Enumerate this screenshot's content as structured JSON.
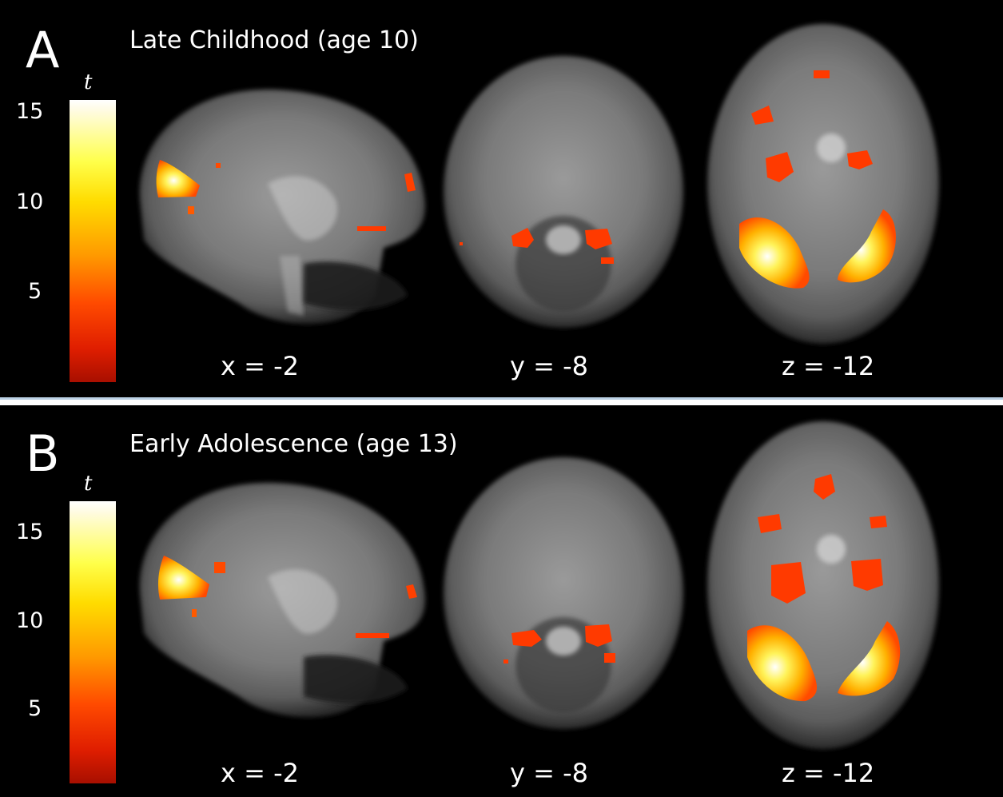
{
  "colormap": {
    "symbol": "t",
    "ticks": [
      "15",
      "10",
      "5"
    ],
    "colors": [
      "#ffffff",
      "#ffff4a",
      "#ff9a00",
      "#e01e00",
      "#a80f00"
    ]
  },
  "panels": [
    {
      "letter": "A",
      "title": "Late Childhood (age 10)",
      "views": [
        {
          "label": "x = -2"
        },
        {
          "label": "y = -8"
        },
        {
          "label": "z = -12"
        }
      ]
    },
    {
      "letter": "B",
      "title": "Early Adolescence (age 13)",
      "views": [
        {
          "label": "x = -2"
        },
        {
          "label": "y = -8"
        },
        {
          "label": "z = -12"
        }
      ]
    }
  ]
}
